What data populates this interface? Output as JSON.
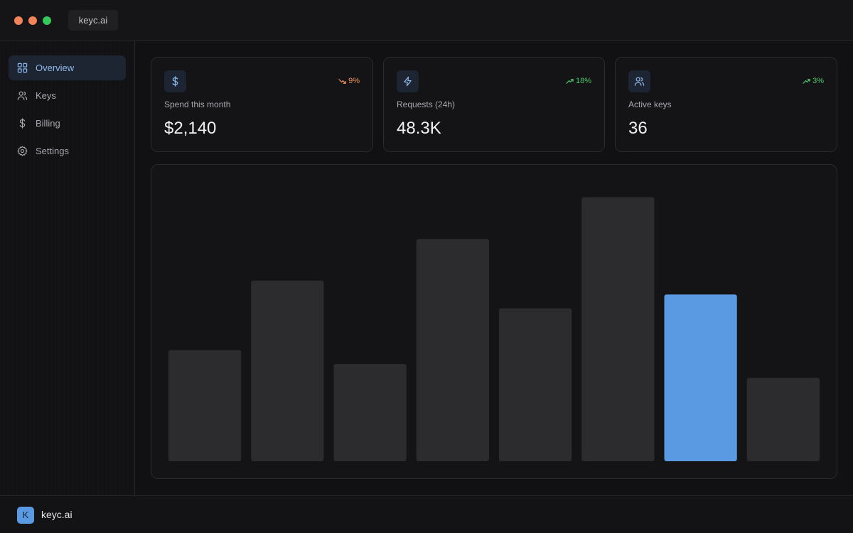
{
  "window": {
    "tab_title": "keyc.ai"
  },
  "sidebar": {
    "items": [
      {
        "label": "Overview",
        "icon": "grid-icon",
        "active": true
      },
      {
        "label": "Keys",
        "icon": "users-icon",
        "active": false
      },
      {
        "label": "Billing",
        "icon": "dollar-icon",
        "active": false
      },
      {
        "label": "Settings",
        "icon": "gear-icon",
        "active": false
      }
    ]
  },
  "stats": [
    {
      "label": "Spend this month",
      "value": "$2,140",
      "delta": "9%",
      "trend": "down",
      "icon": "dollar-icon"
    },
    {
      "label": "Requests (24h)",
      "value": "48.3K",
      "delta": "18%",
      "trend": "up",
      "icon": "bolt-icon"
    },
    {
      "label": "Active keys",
      "value": "36",
      "delta": "3%",
      "trend": "up",
      "icon": "users-icon"
    }
  ],
  "footer": {
    "logo_letter": "K",
    "brand": "keyc.ai"
  },
  "colors": {
    "accent": "#5a9ae2",
    "bar": "#2c2c2e",
    "trend_down": "#f2975a",
    "trend_up": "#4cc96b"
  },
  "chart_data": {
    "type": "bar",
    "values": [
      40,
      65,
      35,
      80,
      55,
      95,
      60,
      30
    ],
    "highlight_index": 6,
    "ylim": [
      0,
      100
    ],
    "grid": false,
    "axes_visible": false
  }
}
